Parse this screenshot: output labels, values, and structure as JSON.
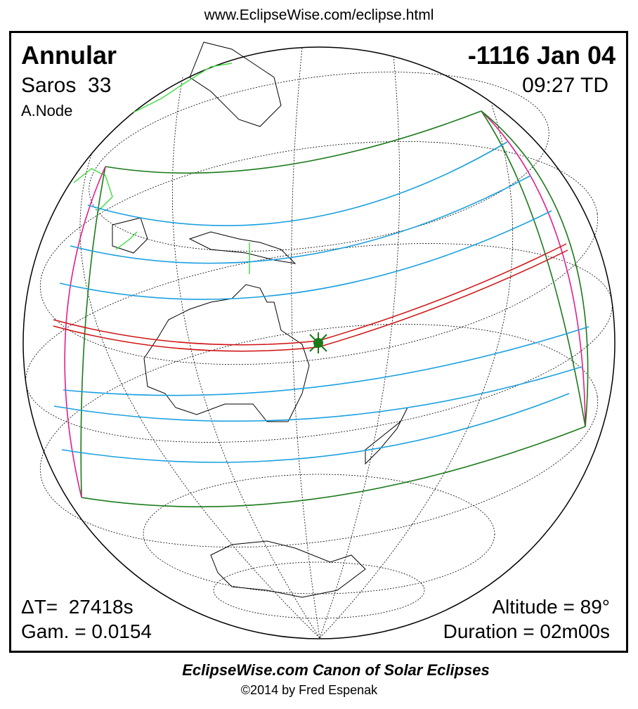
{
  "header": {
    "url": "www.EclipseWise.com/eclipse.html"
  },
  "map": {
    "eclipse_type": "Annular",
    "date": "-1116 Jan 04",
    "saros": "Saros  33",
    "time": "09:27 TD",
    "node": "A.Node",
    "delta_t": "ΔT=  27418s",
    "gamma": "Gam. = 0.0154",
    "altitude": "Altitude = 89°",
    "duration": "Duration = 02m00s"
  },
  "footer": {
    "title": "EclipseWise.com Canon of Solar Eclipses",
    "copyright": "©2014 by Fred Espenak"
  }
}
